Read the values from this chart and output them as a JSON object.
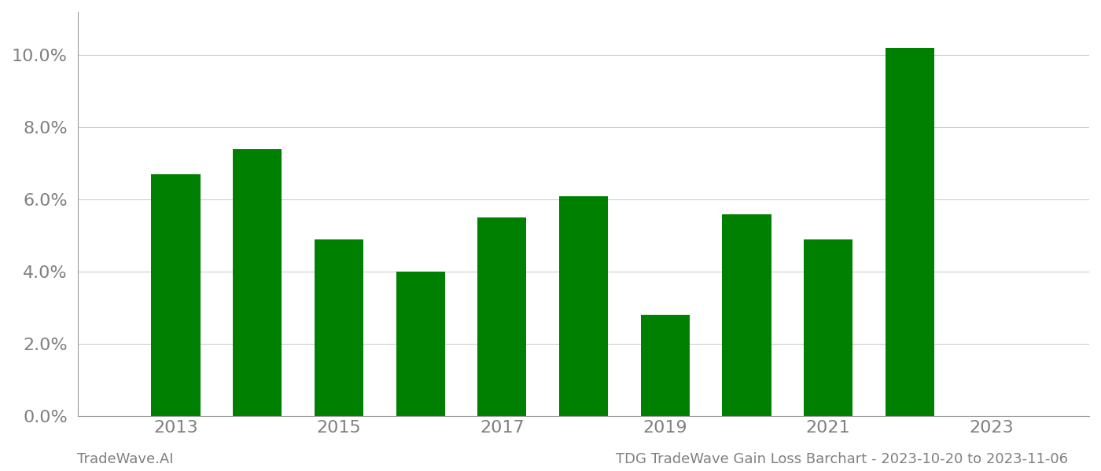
{
  "years": [
    2013,
    2014,
    2015,
    2016,
    2017,
    2018,
    2019,
    2020,
    2021,
    2022,
    2023
  ],
  "values": [
    0.067,
    0.074,
    0.049,
    0.04,
    0.055,
    0.061,
    0.028,
    0.056,
    0.049,
    0.102,
    null
  ],
  "bar_color": "#008000",
  "background_color": "#ffffff",
  "grid_color": "#cccccc",
  "axis_color": "#999999",
  "tick_label_color": "#808080",
  "ylim": [
    0,
    0.112
  ],
  "yticks": [
    0.0,
    0.02,
    0.04,
    0.06,
    0.08,
    0.1
  ],
  "xticks": [
    2013,
    2015,
    2017,
    2019,
    2021,
    2023
  ],
  "footer_left": "TradeWave.AI",
  "footer_right": "TDG TradeWave Gain Loss Barchart - 2023-10-20 to 2023-11-06",
  "footer_color": "#808080",
  "bar_width": 0.6,
  "tick_fontsize": 16,
  "footer_fontsize": 13
}
